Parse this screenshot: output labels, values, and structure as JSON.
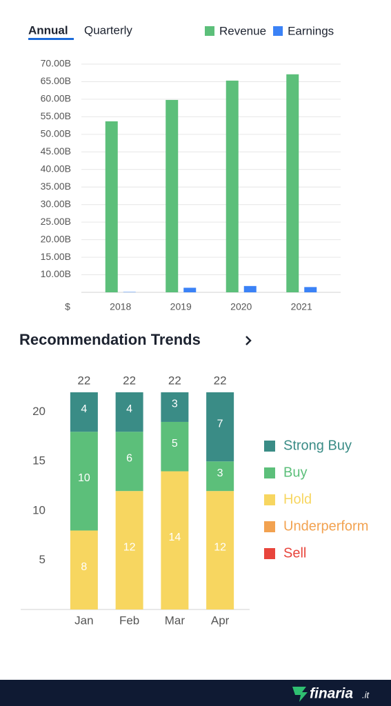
{
  "tabs": [
    "Annual",
    "Quarterly"
  ],
  "section_title": "Recommendation Trends",
  "footer": {
    "brand": "finaria",
    "tld": ".it"
  },
  "chart_data": [
    {
      "type": "bar",
      "categories": [
        "2018",
        "2019",
        "2020",
        "2021"
      ],
      "series": [
        {
          "name": "Revenue",
          "color": "#5cbf7a",
          "values": [
            53.7,
            59.8,
            65.3,
            67.1
          ]
        },
        {
          "name": "Earnings",
          "color": "#3b82f6",
          "values": [
            5.1,
            6.3,
            6.8,
            6.5
          ]
        }
      ],
      "ylim": [
        5,
        70
      ],
      "yticks": [
        {
          "value": 10,
          "label": "10.00B"
        },
        {
          "value": 15,
          "label": "15.00B"
        },
        {
          "value": 20,
          "label": "20.00B"
        },
        {
          "value": 25,
          "label": "25.00B"
        },
        {
          "value": 30,
          "label": "30.00B"
        },
        {
          "value": 35,
          "label": "35.00B"
        },
        {
          "value": 40,
          "label": "40.00B"
        },
        {
          "value": 45,
          "label": "45.00B"
        },
        {
          "value": 50,
          "label": "50.00B"
        },
        {
          "value": 55,
          "label": "55.00B"
        },
        {
          "value": 60,
          "label": "60.00B"
        },
        {
          "value": 65,
          "label": "65.00B"
        },
        {
          "value": 70,
          "label": "70.00B"
        }
      ],
      "y_axis_label": "$",
      "grid": true,
      "legend": "top-right"
    },
    {
      "type": "stacked_bar",
      "categories": [
        "Jan",
        "Feb",
        "Mar",
        "Apr"
      ],
      "series": [
        {
          "name": "Hold",
          "color": "#f7d660",
          "values": [
            8,
            12,
            14,
            12
          ]
        },
        {
          "name": "Buy",
          "color": "#5cbf7a",
          "values": [
            10,
            6,
            5,
            3
          ]
        },
        {
          "name": "Strong Buy",
          "color": "#3a8c86",
          "values": [
            4,
            4,
            3,
            7
          ]
        },
        {
          "name": "Underperform",
          "color": "#f2a250",
          "values": [
            0,
            0,
            0,
            0
          ]
        },
        {
          "name": "Sell",
          "color": "#e8453c",
          "values": [
            0,
            0,
            0,
            0
          ]
        }
      ],
      "legend_order": [
        "Strong Buy",
        "Buy",
        "Hold",
        "Underperform",
        "Sell"
      ],
      "totals": [
        22,
        22,
        22,
        22
      ],
      "ylim": [
        0,
        22
      ],
      "yticks": [
        5,
        10,
        15,
        20
      ],
      "grid": false,
      "legend": "right"
    }
  ]
}
